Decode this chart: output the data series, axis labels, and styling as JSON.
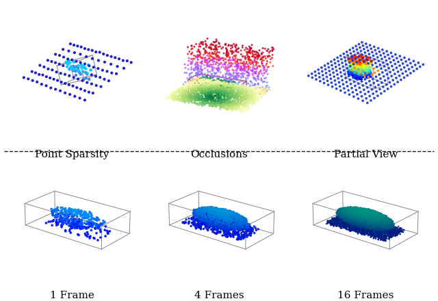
{
  "labels_top": [
    "Point Sparsity",
    "Occlusions",
    "Partial View"
  ],
  "labels_bottom": [
    "1 Frame",
    "4 Frames",
    "16 Frames"
  ],
  "label_fontsize": 11,
  "background_color": "#ffffff",
  "box_color_gray": "#888888",
  "box_color_red": "#cc3333",
  "scatter_seed": 42
}
